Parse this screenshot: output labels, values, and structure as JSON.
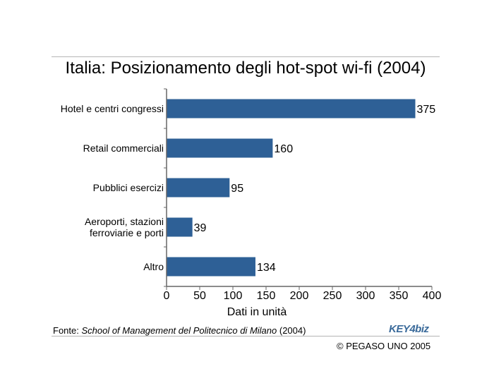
{
  "chart_data": {
    "type": "bar",
    "orientation": "horizontal",
    "title": "Italia: Posizionamento degli hot-spot wi-fi (2004)",
    "xlabel": "Dati in unità",
    "ylabel": "",
    "categories": [
      [
        "Hotel e centri congressi"
      ],
      [
        "Retail commerciali"
      ],
      [
        "Pubblici esercizi"
      ],
      [
        "Aeroporti, stazioni",
        "ferroviarie e porti"
      ],
      [
        "Altro"
      ]
    ],
    "values": [
      375,
      160,
      95,
      39,
      134
    ],
    "data_labels": [
      "375",
      "160",
      "95",
      "39",
      "134"
    ],
    "xlim": [
      0,
      400
    ],
    "xticks": [
      0,
      50,
      100,
      150,
      200,
      250,
      300,
      350,
      400
    ],
    "grid": false,
    "legend": "none",
    "bar_color": "#2e6096"
  },
  "source": {
    "prefix": "Fonte: ",
    "name": "School of Management del Politecnico di Milano",
    "suffix": " (2004)"
  },
  "logo": {
    "text": "KEY4biz"
  },
  "copyright": "© PEGASO UNO 2005"
}
